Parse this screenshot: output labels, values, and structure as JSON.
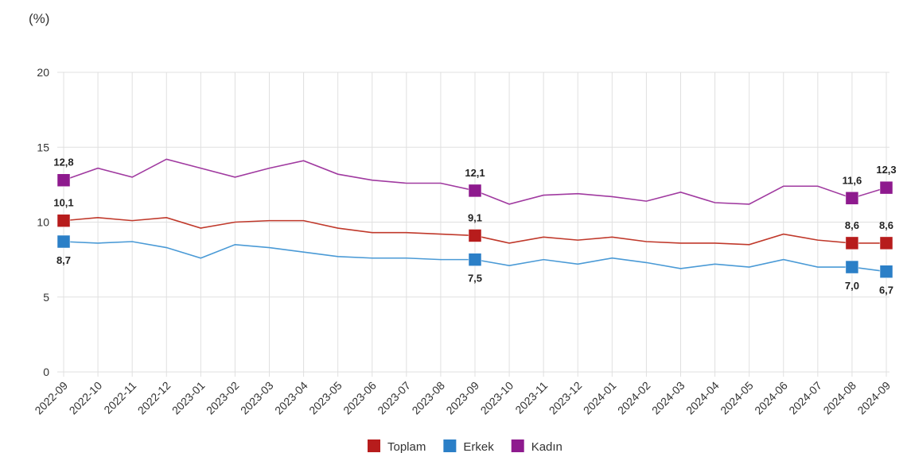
{
  "chart_data": {
    "type": "line",
    "ylabel": "(%)",
    "ylim": [
      0,
      20
    ],
    "yticks": [
      "0",
      "5",
      "10",
      "15",
      "20"
    ],
    "ytick_values": [
      0,
      5,
      10,
      15,
      20
    ],
    "grid": true,
    "legend_position": "bottom",
    "categories": [
      "2022-09",
      "2022-10",
      "2022-11",
      "2022-12",
      "2023-01",
      "2023-02",
      "2023-03",
      "2023-04",
      "2023-05",
      "2023-06",
      "2023-07",
      "2023-08",
      "2023-09",
      "2023-10",
      "2023-11",
      "2023-12",
      "2024-01",
      "2024-02",
      "2024-03",
      "2024-04",
      "2024-05",
      "2024-06",
      "2024-07",
      "2024-08",
      "2024-09"
    ],
    "labeled_indices": [
      0,
      12,
      23,
      24
    ],
    "series": [
      {
        "name": "Toplam",
        "color": "#b71c1c",
        "line_color": "#c0392b",
        "label_pos": "above",
        "values": [
          10.1,
          10.3,
          10.1,
          10.3,
          9.6,
          10.0,
          10.1,
          10.1,
          9.6,
          9.3,
          9.3,
          9.2,
          9.1,
          8.6,
          9.0,
          8.8,
          9.0,
          8.7,
          8.6,
          8.6,
          8.5,
          9.2,
          8.8,
          8.6,
          8.6
        ],
        "labels": {
          "0": "10,1",
          "12": "9,1",
          "23": "8,6",
          "24": "8,6"
        }
      },
      {
        "name": "Erkek",
        "color": "#2b7fc7",
        "line_color": "#4a9ad6",
        "label_pos": "below",
        "values": [
          8.7,
          8.6,
          8.7,
          8.3,
          7.6,
          8.5,
          8.3,
          8.0,
          7.7,
          7.6,
          7.6,
          7.5,
          7.5,
          7.1,
          7.5,
          7.2,
          7.6,
          7.3,
          6.9,
          7.2,
          7.0,
          7.5,
          7.0,
          7.0,
          6.7
        ],
        "labels": {
          "0": "8,7",
          "12": "7,5",
          "23": "7,0",
          "24": "6,7"
        }
      },
      {
        "name": "Kadın",
        "color": "#8e1a8e",
        "line_color": "#a03aa0",
        "label_pos": "above",
        "values": [
          12.8,
          13.6,
          13.0,
          14.2,
          13.6,
          13.0,
          13.6,
          14.1,
          13.2,
          12.8,
          12.6,
          12.6,
          12.1,
          11.2,
          11.8,
          11.9,
          11.7,
          11.4,
          12.0,
          11.3,
          11.2,
          12.4,
          12.4,
          11.6,
          12.3
        ],
        "labels": {
          "0": "12,8",
          "12": "12,1",
          "23": "11,6",
          "24": "12,3"
        }
      }
    ]
  }
}
